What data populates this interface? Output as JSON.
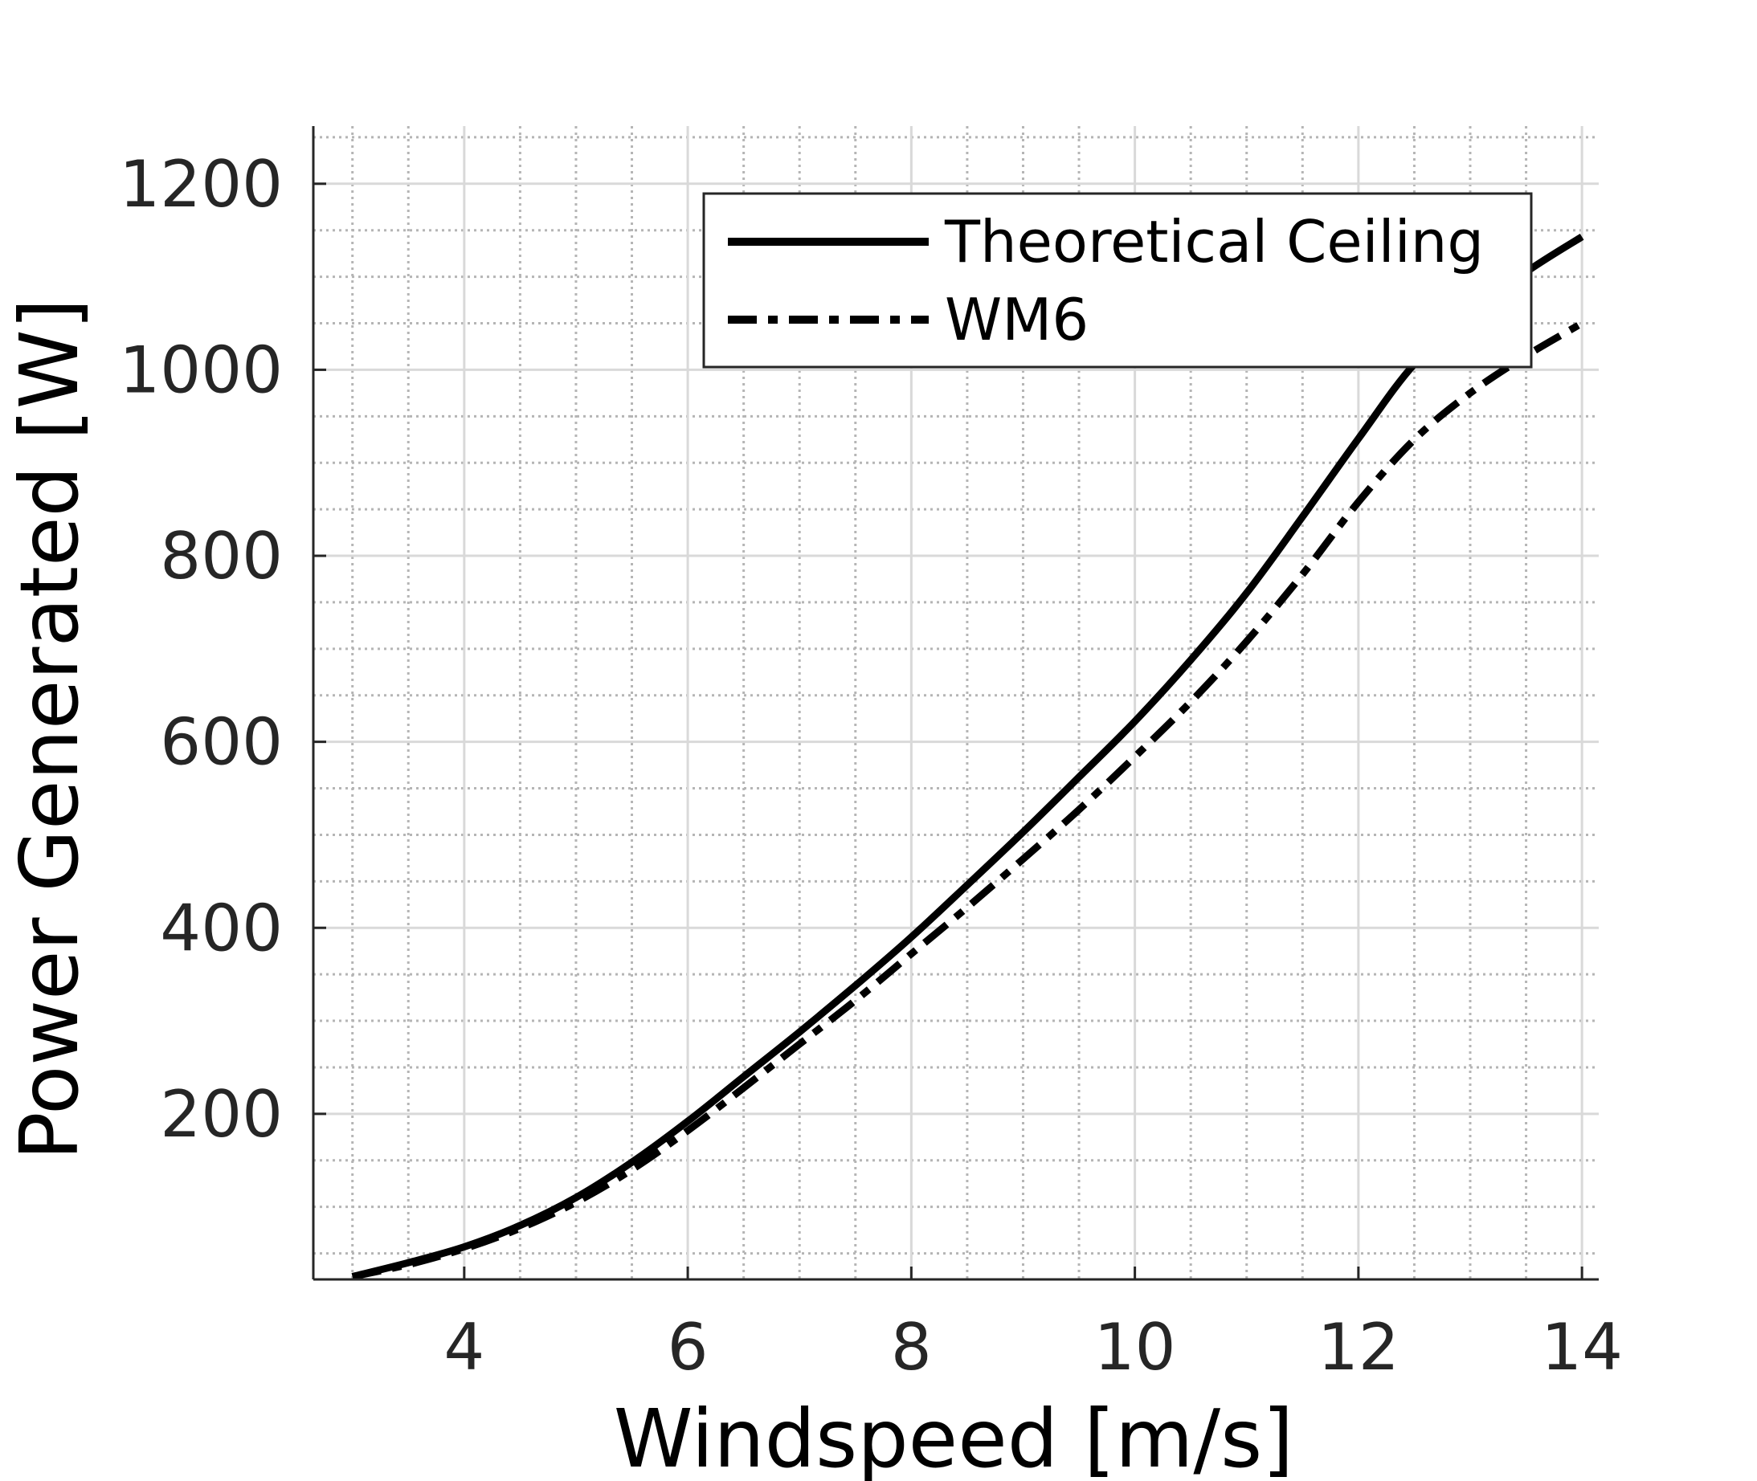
{
  "chart_data": {
    "type": "line",
    "title": "",
    "xlabel": "Windspeed [m/s]",
    "ylabel": "Power Generated [W]",
    "xlim": [
      2.65,
      14.15
    ],
    "ylim": [
      22,
      1262
    ],
    "xticks": [
      4,
      6,
      8,
      10,
      12,
      14
    ],
    "yticks": [
      200,
      400,
      600,
      800,
      1000,
      1200
    ],
    "xtick_labels": [
      "4",
      "6",
      "8",
      "10",
      "12",
      "14"
    ],
    "ytick_labels": [
      "200",
      "400",
      "600",
      "800",
      "1000",
      "1200"
    ],
    "grid": true,
    "minor_grid": true,
    "x_minor_step": 0.5,
    "y_minor_step": 50,
    "legend_position": "top-right",
    "colors": {
      "line": "#000000",
      "grid_major": "#d9d9d9",
      "grid_minor": "#b5b5b5",
      "axis": "#262626"
    },
    "series": [
      {
        "name": "Theoretical Ceiling",
        "style": "solid",
        "x": [
          3,
          3.5,
          4,
          4.5,
          5,
          5.5,
          6,
          6.5,
          7,
          7.5,
          8,
          8.5,
          9,
          9.5,
          10,
          10.5,
          11,
          11.5,
          12,
          12.5,
          13,
          13.5,
          14
        ],
        "y": [
          25,
          40,
          57,
          80,
          110,
          148,
          192,
          240,
          288,
          338,
          390,
          446,
          503,
          562,
          622,
          688,
          760,
          842,
          926,
          1006,
          1058,
          1105,
          1143
        ]
      },
      {
        "name": "WM6",
        "style": "dashdot",
        "x": [
          3,
          3.5,
          4,
          4.5,
          5,
          5.5,
          6,
          6.5,
          7,
          7.5,
          8,
          8.5,
          9,
          9.5,
          10,
          10.5,
          11,
          11.5,
          12,
          12.5,
          13,
          13.5,
          14
        ],
        "y": [
          25,
          38,
          55,
          77,
          105,
          140,
          182,
          228,
          275,
          322,
          372,
          422,
          474,
          527,
          584,
          643,
          708,
          780,
          858,
          925,
          975,
          1015,
          1050
        ]
      }
    ]
  }
}
